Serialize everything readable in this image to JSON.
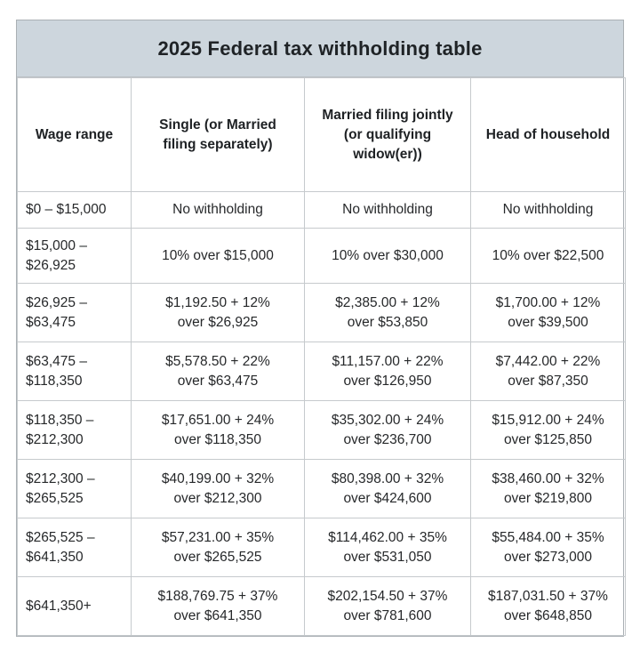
{
  "chart_data": {
    "type": "table",
    "title": "2025 Federal tax withholding table",
    "columns": [
      "Wage range",
      "Single (or Married\nfiling separately)",
      "Married filing jointly\n(or qualifying\nwidow(er))",
      "Head of household"
    ],
    "rows": [
      [
        "$0 – $15,000",
        "No withholding",
        "No withholding",
        "No withholding"
      ],
      [
        "$15,000 –\n$26,925",
        "10% over $15,000",
        "10% over $30,000",
        "10% over $22,500"
      ],
      [
        "$26,925 –\n$63,475",
        "$1,192.50 + 12%\nover $26,925",
        "$2,385.00 + 12%\nover $53,850",
        "$1,700.00 + 12%\nover $39,500"
      ],
      [
        "$63,475 –\n$118,350",
        "$5,578.50 + 22%\nover $63,475",
        "$11,157.00 + 22%\nover $126,950",
        "$7,442.00 + 22%\nover $87,350"
      ],
      [
        "$118,350 –\n$212,300",
        "$17,651.00 + 24%\nover $118,350",
        "$35,302.00 + 24%\nover $236,700",
        "$15,912.00 + 24%\nover $125,850"
      ],
      [
        "$212,300 –\n$265,525",
        "$40,199.00 + 32%\nover $212,300",
        "$80,398.00 + 32%\nover $424,600",
        "$38,460.00 + 32%\nover $219,800"
      ],
      [
        "$265,525 –\n$641,350",
        "$57,231.00 + 35%\nover $265,525",
        "$114,462.00 + 35%\nover $531,050",
        "$55,484.00 + 35%\nover $273,000"
      ],
      [
        "$641,350+",
        "$188,769.75 + 37%\nover $641,350",
        "$202,154.50 + 37%\nover $781,600",
        "$187,031.50 + 37%\nover $648,850"
      ]
    ],
    "layout": {
      "legend": "none",
      "grid": "on",
      "header_row": true,
      "first_column_role": "wage-range"
    }
  },
  "colors": {
    "title_band_background": "#cdd6dd",
    "cell_border": "#c6cacd",
    "outer_border": "#aab0b4",
    "text": "#26282a",
    "background": "#ffffff"
  }
}
